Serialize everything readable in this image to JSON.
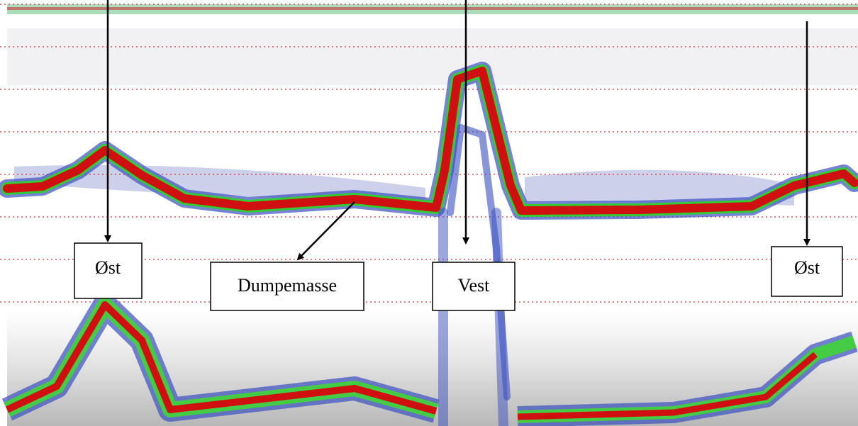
{
  "annotations": [
    {
      "label": "Øst"
    },
    {
      "label": "Dumpemasse"
    },
    {
      "label": "Vest"
    },
    {
      "label": "Øst"
    }
  ]
}
